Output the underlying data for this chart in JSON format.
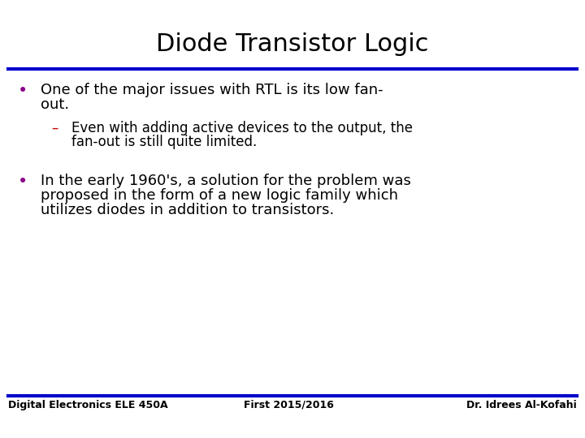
{
  "title": "Diode Transistor Logic",
  "title_fontsize": 22,
  "title_color": "#000000",
  "bg_color": "#ffffff",
  "line_color": "#0000cc",
  "bullet_color": "#8B008B",
  "sub_bullet_dash_color": "#cc0000",
  "bullet1_line1": "One of the major issues with RTL is its low fan-",
  "bullet1_line2": "out.",
  "sub_line1": "Even with adding active devices to the output, the",
  "sub_line2": "fan-out is still quite limited.",
  "bullet2_line1": "In the early 1960's, a solution for the problem was",
  "bullet2_line2": "proposed in the form of a new logic family which",
  "bullet2_line3": "utilizes diodes in addition to transistors.",
  "footer_left": "Digital Electronics ELE 450A",
  "footer_center": "First 2015/2016",
  "footer_right": "Dr. Idrees Al-Kofahi",
  "footer_fontsize": 9,
  "body_fontsize": 13,
  "sub_fontsize": 12
}
